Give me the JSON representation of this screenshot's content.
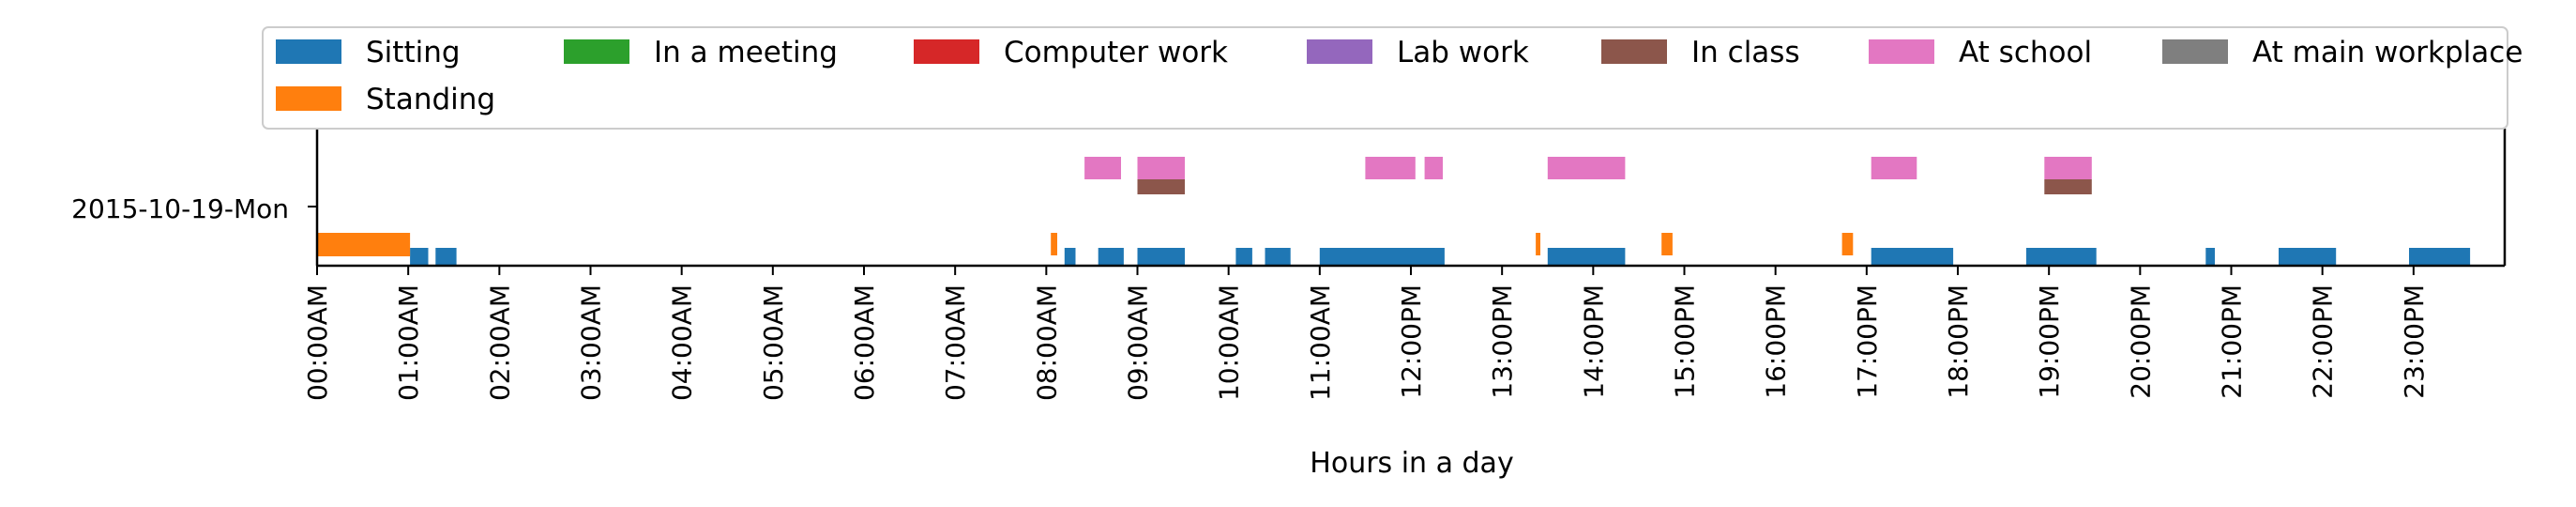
{
  "chart_data": {
    "type": "bar",
    "orientation": "horizontal-timeline",
    "xlabel": "Hours in a day",
    "xlim": [
      0,
      24
    ],
    "x_ticks": [
      "00:00AM",
      "01:00AM",
      "02:00AM",
      "03:00AM",
      "04:00AM",
      "05:00AM",
      "06:00AM",
      "07:00AM",
      "08:00AM",
      "09:00AM",
      "10:00AM",
      "11:00AM",
      "12:00PM",
      "13:00PM",
      "14:00PM",
      "15:00PM",
      "16:00PM",
      "17:00PM",
      "18:00PM",
      "19:00PM",
      "20:00PM",
      "21:00PM",
      "22:00PM",
      "23:00PM"
    ],
    "y_ticks": [
      "2015-10-19-Mon"
    ],
    "grid": false,
    "legend_placement": "top",
    "legend": [
      {
        "label": "Sitting",
        "color": "#1f77b4"
      },
      {
        "label": "In a meeting",
        "color": "#2ca02c"
      },
      {
        "label": "Computer work",
        "color": "#d62728"
      },
      {
        "label": "Lab work",
        "color": "#9467bd"
      },
      {
        "label": "In class",
        "color": "#8c564b"
      },
      {
        "label": "At school",
        "color": "#e377c2"
      },
      {
        "label": "At main workplace",
        "color": "#7f7f7f"
      },
      {
        "label": "Standing",
        "color": "#ff7f0e"
      }
    ],
    "series": [
      {
        "name": "Sitting",
        "color": "#1f77b4",
        "intervals": [
          [
            1.02,
            1.22
          ],
          [
            1.3,
            1.53
          ],
          [
            8.2,
            8.32
          ],
          [
            8.57,
            8.85
          ],
          [
            9.0,
            9.52
          ],
          [
            10.08,
            10.26
          ],
          [
            10.4,
            10.68
          ],
          [
            11.0,
            12.37
          ],
          [
            13.5,
            14.35
          ],
          [
            17.05,
            17.95
          ],
          [
            18.75,
            19.52
          ],
          [
            20.72,
            20.82
          ],
          [
            21.52,
            22.15
          ],
          [
            22.95,
            23.62
          ]
        ]
      },
      {
        "name": "Standing",
        "color": "#ff7f0e",
        "intervals": [
          [
            0.0,
            1.02
          ],
          [
            8.05,
            8.12
          ],
          [
            13.37,
            13.42
          ],
          [
            14.75,
            14.87
          ],
          [
            16.73,
            16.85
          ]
        ]
      },
      {
        "name": "In class",
        "color": "#8c564b",
        "intervals": [
          [
            9.0,
            9.52
          ],
          [
            18.95,
            19.47
          ]
        ]
      },
      {
        "name": "At school",
        "color": "#e377c2",
        "intervals": [
          [
            8.42,
            8.82
          ],
          [
            9.0,
            9.52
          ],
          [
            11.5,
            12.05
          ],
          [
            12.15,
            12.35
          ],
          [
            13.5,
            14.35
          ],
          [
            17.05,
            17.55
          ],
          [
            18.95,
            19.47
          ]
        ]
      }
    ]
  }
}
